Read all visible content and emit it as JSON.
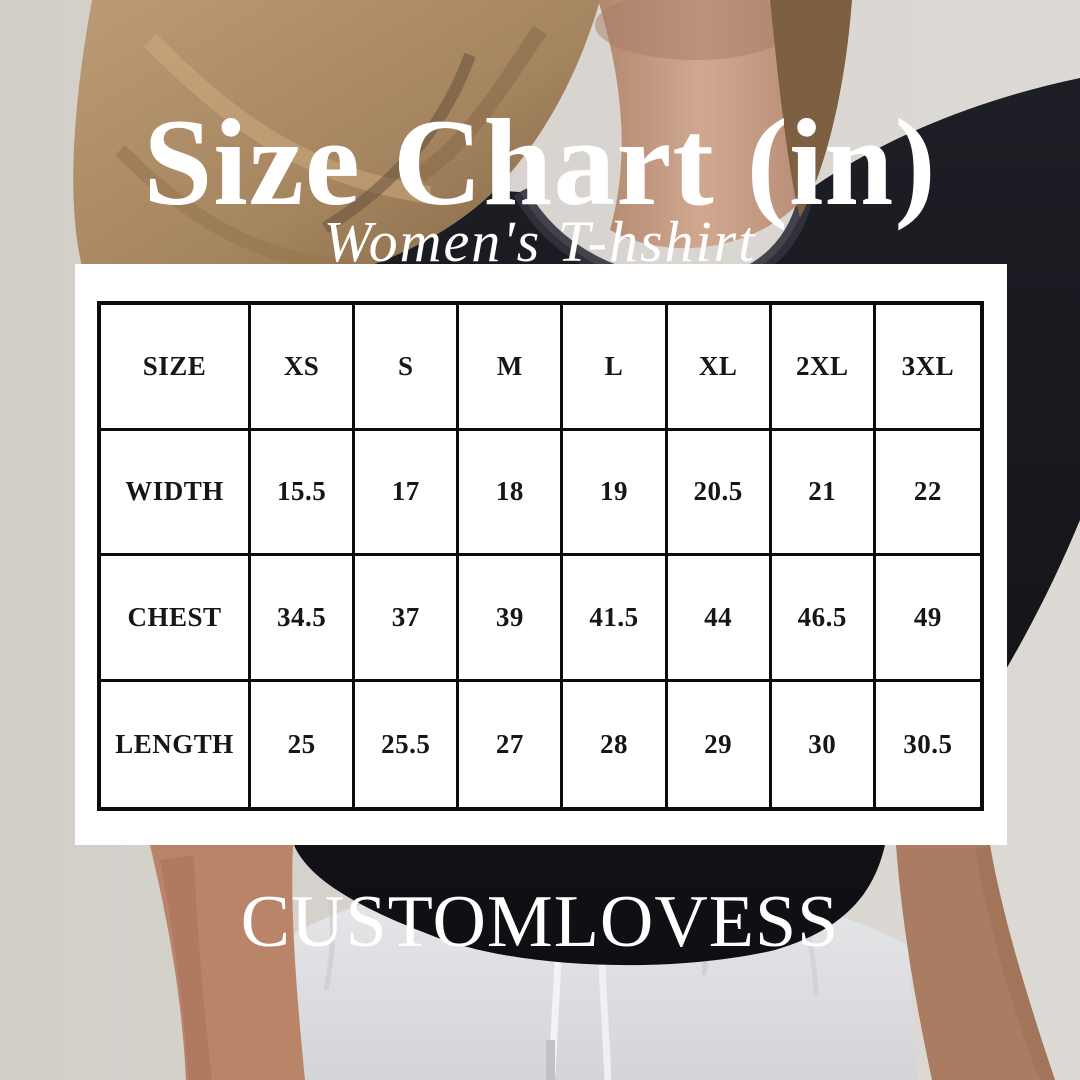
{
  "header": {
    "title": "Size Chart (in)",
    "subtitle": "Women's T-hshirt"
  },
  "brand": {
    "name": "CUSTOMLOVESS"
  },
  "chart_data": {
    "type": "table",
    "title": "Size Chart (in)",
    "subtitle": "Women's T-hshirt",
    "unit": "in",
    "columns": [
      "SIZE",
      "XS",
      "S",
      "M",
      "L",
      "XL",
      "2XL",
      "3XL"
    ],
    "rows": [
      {
        "label": "WIDTH",
        "values": [
          15.5,
          17,
          18,
          19,
          20.5,
          21,
          22
        ]
      },
      {
        "label": "CHEST",
        "values": [
          34.5,
          37,
          39,
          41.5,
          44,
          46.5,
          49
        ]
      },
      {
        "label": "LENGTH",
        "values": [
          25,
          25.5,
          27,
          28,
          29,
          30,
          30.5
        ]
      }
    ]
  },
  "colors": {
    "panel_bg": "#ffffff",
    "table_border": "#0c0c0c",
    "table_text": "#161616",
    "text_on_photo": "#ffffff",
    "wall": "#d6d1cc",
    "shirt": "#15161c",
    "hair": "#a5855f",
    "skin": "#c79e87",
    "pants": "#dcdee0"
  }
}
